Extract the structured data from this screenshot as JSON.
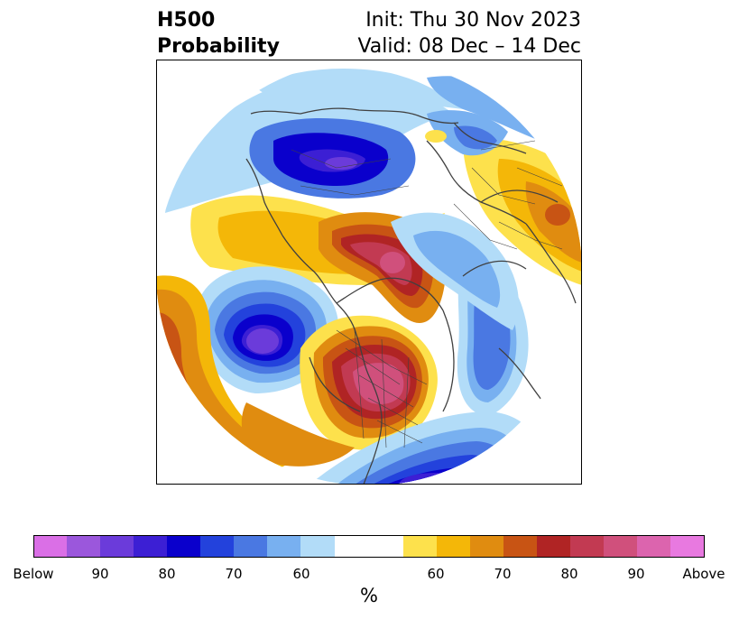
{
  "header": {
    "variable": "H500",
    "product": "Probability",
    "init": "Init: Thu 30 Nov 2023",
    "valid": "Valid: 08 Dec – 14 Dec"
  },
  "map": {
    "projection": "north-polar-stereographic",
    "region": "Northern Hemisphere",
    "features": [
      "coastlines",
      "country borders",
      "US state borders",
      "filled probability contours"
    ],
    "anomaly_centers": [
      {
        "sign": "Below",
        "area": "Central Asia / Siberia",
        "strength": "90"
      },
      {
        "sign": "Below",
        "area": "North Pacific / Gulf of Alaska",
        "strength": "90"
      },
      {
        "sign": "Below",
        "area": "North Atlantic",
        "strength": "90"
      },
      {
        "sign": "Above",
        "area": "Arctic / Beaufort Sea",
        "strength": "Above"
      },
      {
        "sign": "Above",
        "area": "Western Canada",
        "strength": "Above"
      },
      {
        "sign": "Above",
        "area": "Central Siberia",
        "strength": "70"
      }
    ]
  },
  "colorbar": {
    "colors": [
      "#da6fe6",
      "#9b57dc",
      "#6b3bda",
      "#3c1fd4",
      "#0a00cc",
      "#2342dc",
      "#4a78e2",
      "#78b0f0",
      "#b2dcf8",
      "#ffffff",
      "#ffffff",
      "#fde14c",
      "#f4b708",
      "#e08c10",
      "#c85414",
      "#b02424",
      "#c23a52",
      "#d0507c",
      "#dc64ae",
      "#e879e0"
    ],
    "ticks": [
      "Below",
      "90",
      "80",
      "70",
      "60",
      "60",
      "70",
      "80",
      "90",
      "Above"
    ],
    "unit": "%"
  }
}
